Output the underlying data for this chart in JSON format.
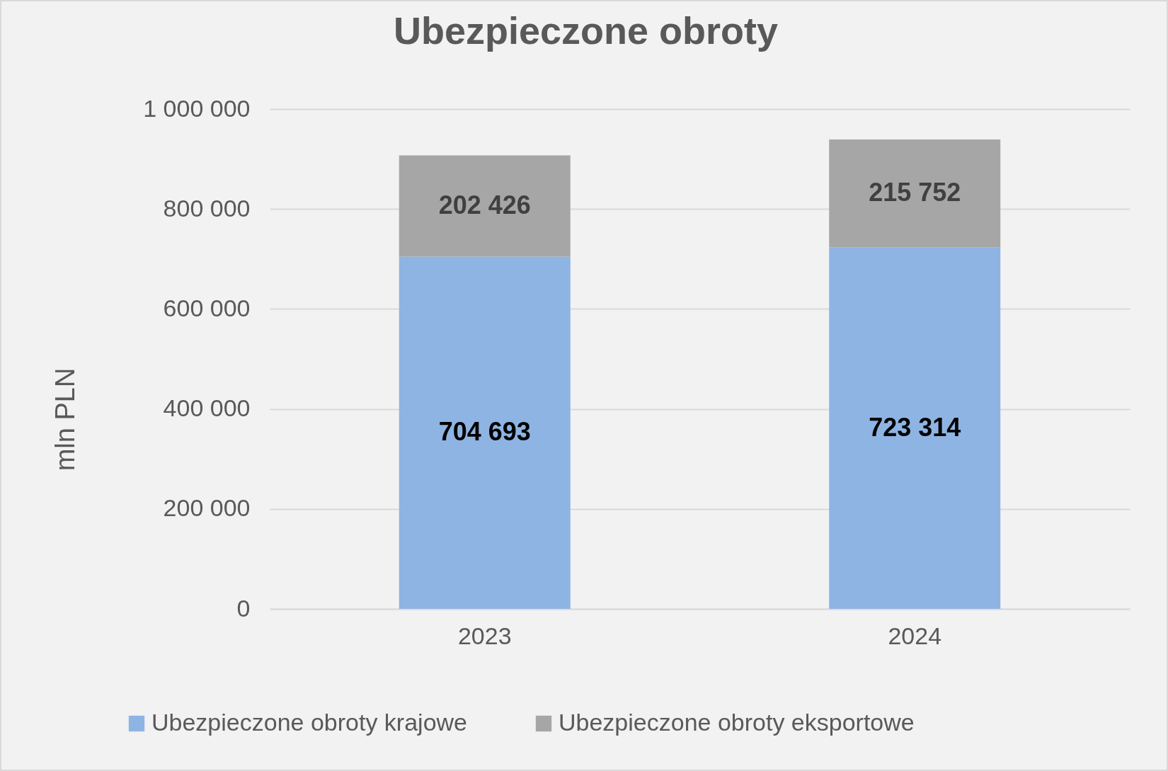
{
  "chart_data": {
    "type": "bar",
    "title": "Ubezpieczone obroty",
    "ylabel": "mln PLN",
    "categories": [
      "2023",
      "2024"
    ],
    "stacked": true,
    "series": [
      {
        "name": "Ubezpieczone obroty krajowe",
        "color": "#8eb4e3",
        "values": [
          704693,
          723314
        ],
        "value_labels": [
          "704 693",
          "723 314"
        ]
      },
      {
        "name": "Ubezpieczone obroty eksportowe",
        "color": "#a6a6a6",
        "values": [
          202426,
          215752
        ],
        "value_labels": [
          "202 426",
          "215 752"
        ]
      }
    ],
    "ylim": [
      0,
      1000000
    ],
    "yticks": [
      0,
      {
        "value": 200000,
        "label": "200 000"
      },
      {
        "value": 400000,
        "label": "400 000"
      },
      {
        "value": 600000,
        "label": "600 000"
      },
      {
        "value": 800000,
        "label": "800 000"
      },
      {
        "value": 1000000,
        "label": "1 000 000"
      }
    ],
    "grid": "y",
    "legend": "bottom"
  }
}
